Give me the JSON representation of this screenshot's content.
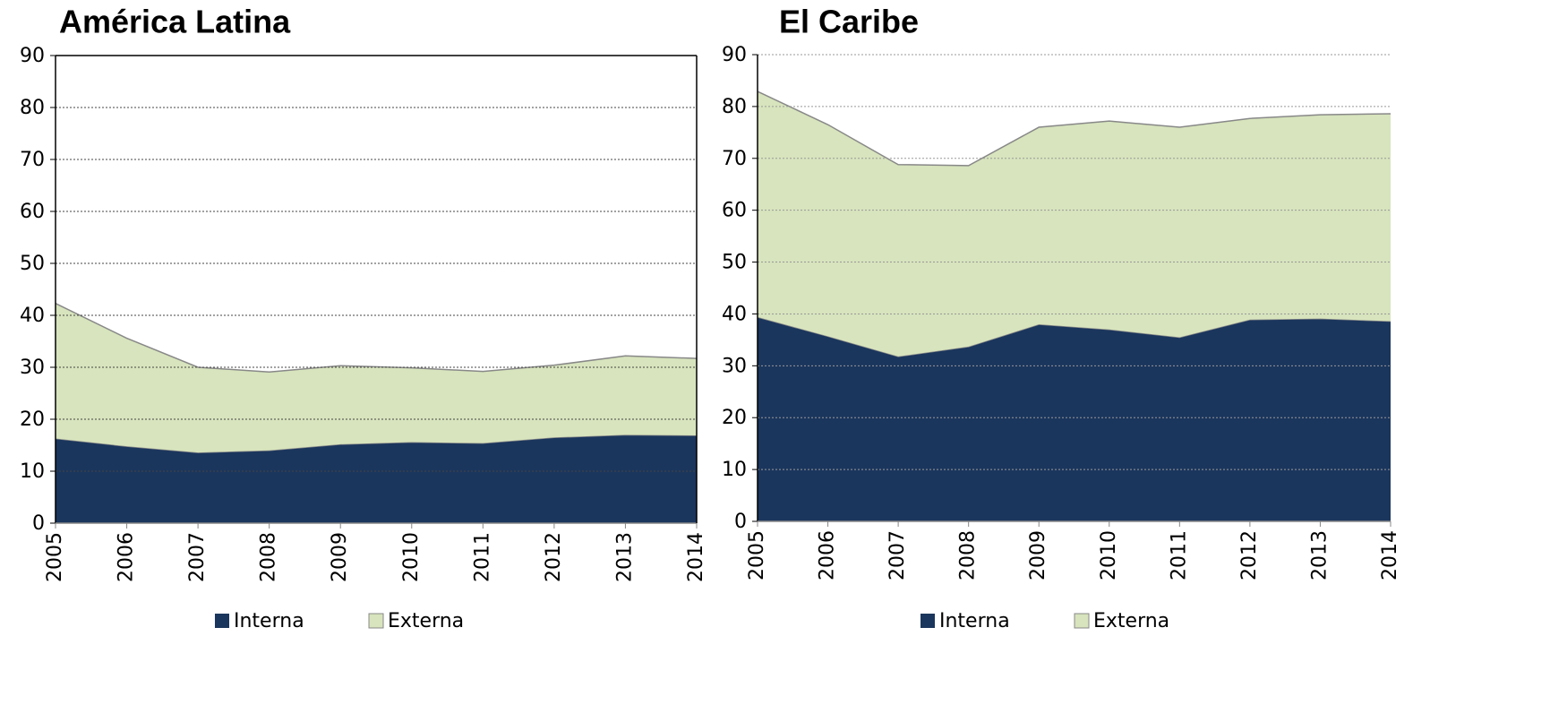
{
  "chart_data": [
    {
      "type": "area",
      "title": "América Latina",
      "categories": [
        "2005",
        "2006",
        "2007",
        "2008",
        "2009",
        "2010",
        "2011",
        "2012",
        "2013",
        "2014"
      ],
      "series": [
        {
          "name": "Interna",
          "color": "#1b365d",
          "values": [
            16.3,
            14.8,
            13.6,
            14.0,
            15.2,
            15.6,
            15.4,
            16.5,
            17.0,
            16.9
          ]
        },
        {
          "name": "Externa",
          "color": "#d7e4bd",
          "values": [
            26.0,
            20.8,
            16.4,
            15.1,
            15.1,
            14.3,
            13.8,
            13.9,
            15.2,
            14.8
          ]
        }
      ],
      "stacked": true,
      "ylim": [
        0,
        90
      ],
      "yticks": [
        0,
        10,
        20,
        30,
        40,
        50,
        60,
        70,
        80,
        90
      ],
      "grid": true,
      "frame": true,
      "legend": "bottom"
    },
    {
      "type": "area",
      "title": "El Caribe",
      "categories": [
        "2005",
        "2006",
        "2007",
        "2008",
        "2009",
        "2010",
        "2011",
        "2012",
        "2013",
        "2014"
      ],
      "series": [
        {
          "name": "Interna",
          "color": "#1b365d",
          "values": [
            39.4,
            35.7,
            31.8,
            33.7,
            38.0,
            37.0,
            35.5,
            38.9,
            39.1,
            38.6
          ]
        },
        {
          "name": "Externa",
          "color": "#d7e4bd",
          "values": [
            43.5,
            40.8,
            37.0,
            34.9,
            38.0,
            40.2,
            40.5,
            38.8,
            39.3,
            40.0
          ]
        }
      ],
      "stacked": true,
      "ylim": [
        0,
        90
      ],
      "yticks": [
        0,
        10,
        20,
        30,
        40,
        50,
        60,
        70,
        80,
        90
      ],
      "grid": true,
      "frame": false,
      "legend": "bottom"
    }
  ]
}
